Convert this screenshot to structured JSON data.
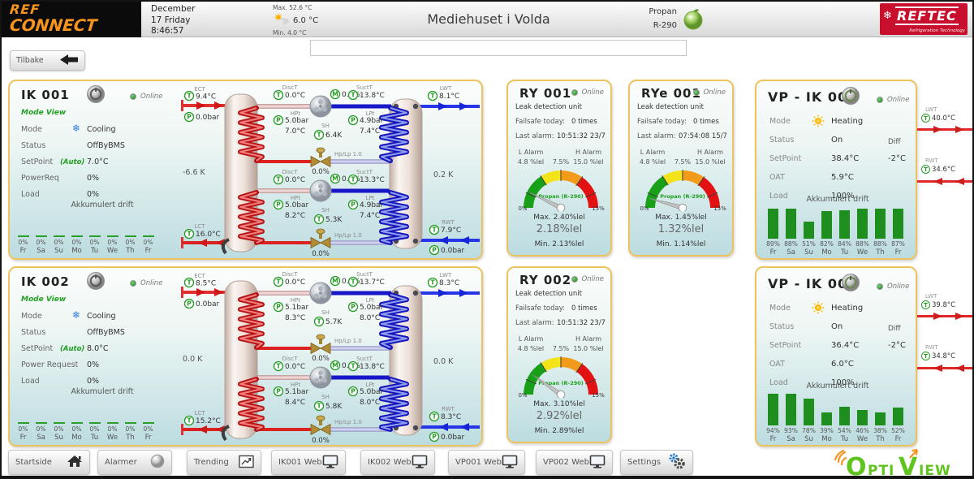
{
  "icons": {
    "t": "T",
    "p": "P",
    "m": "M"
  },
  "header": {
    "logo": {
      "line1": "REF",
      "line2": "CONNECT"
    },
    "date": {
      "month": "December",
      "day": "17 Friday",
      "time": "8:46:57"
    },
    "weather": {
      "max": "Max. 52.6 °C",
      "now": "6.0 °C",
      "min": "Min. 4.0 °C"
    },
    "title": "Mediehuset i Volda",
    "refrigerant": {
      "name": "Propan",
      "code": "R-290"
    },
    "brand": {
      "name": "REFTEC",
      "sub": "Refrigeration Technology"
    }
  },
  "back": {
    "label": "Tilbake"
  },
  "search": {
    "value": ""
  },
  "ik001": {
    "title": "IK 001",
    "online": "Online",
    "mode_view": "Mode View",
    "labels": {
      "mode": "Mode",
      "status": "Status",
      "setpoint": "SetPoint",
      "auto": "(Auto)",
      "power": "PowerReq",
      "load": "Load",
      "akk": "Akkumulert drift"
    },
    "values": {
      "mode": "Cooling",
      "status": "OffByBMS",
      "setpoint": "7.0°C",
      "power": "0%",
      "load": "0%"
    },
    "days": {
      "labels": [
        "Fr",
        "Sa",
        "Su",
        "Mo",
        "Tu",
        "We",
        "Th",
        "Fr"
      ],
      "values": [
        0,
        0,
        0,
        0,
        0,
        0,
        0,
        0
      ]
    },
    "d": {
      "ect": "ECT",
      "ect_t": "9.4°C",
      "ect_p": "0.0bar",
      "lct": "LCT",
      "lct_t": "16.0°C",
      "k_left": "-6.6 K",
      "k_right": "0.2 K",
      "lwt": "LWT",
      "lwt_t": "8.1°C",
      "rwt": "RWT",
      "rwt_t": "7.9°C",
      "rwt_p": "0.0bar",
      "c1": {
        "disct_l": "DiscT",
        "disct": "0.0°C",
        "hpt_l": "HPt",
        "hpt_p": "5.0bar",
        "hpt_t": "7.0°C",
        "m": "0.0%",
        "sh_l": "SH",
        "sh": "6.4K",
        "suctt_l": "SuctT",
        "suctt": "13.8°C",
        "lpt_l": "LPt",
        "lpt_p": "4.9bar",
        "lpt_t": "7.4°C",
        "hplp": "Hp/Lp 1.0",
        "valve": "0.0%"
      },
      "c2": {
        "disct_l": "DiscT",
        "disct": "0.0°C",
        "hpt_l": "HPt",
        "hpt_p": "5.0bar",
        "hpt_t": "8.2°C",
        "m": "0.0%",
        "sh_l": "SH",
        "sh": "5.3K",
        "suctt_l": "SuctT",
        "suctt": "13.3°C",
        "lpt_l": "LPt",
        "lpt_p": "4.9bar",
        "lpt_t": "7.4°C",
        "hplp": "Hp/Lp 1.0",
        "valve": "0.0%"
      }
    }
  },
  "ik002": {
    "title": "IK 002",
    "online": "Online",
    "mode_view": "Mode View",
    "labels": {
      "mode": "Mode",
      "status": "Status",
      "setpoint": "SetPoint",
      "auto": "(Auto)",
      "power": "Power Request",
      "load": "Load",
      "akk": "Akkumulert drift"
    },
    "values": {
      "mode": "Cooling",
      "status": "OffByBMS",
      "setpoint": "8.0°C",
      "power": "0%",
      "load": "0%"
    },
    "days": {
      "labels": [
        "Fr",
        "Sa",
        "Su",
        "Mo",
        "Tu",
        "We",
        "Th",
        "Fr"
      ],
      "values": [
        0,
        0,
        0,
        0,
        0,
        0,
        0,
        0
      ]
    },
    "d": {
      "ect": "ECT",
      "ect_t": "8.5°C",
      "ect_p": "0.0bar",
      "lct": "LCT",
      "lct_t": "15.2°C",
      "k_left": "0.0 K",
      "k_right": "0.0 K",
      "lwt": "LWT",
      "lwt_t": "8.3°C",
      "rwt": "RWT",
      "rwt_t": "8.3°C",
      "rwt_p": "0.0bar",
      "c1": {
        "disct_l": "DiscT",
        "disct": "0.0°C",
        "hpt_l": "HPt",
        "hpt_p": "5.1bar",
        "hpt_t": "8.3°C",
        "m": "0.0%",
        "sh_l": "SH",
        "sh": "5.7K",
        "suctt_l": "SuctT",
        "suctt": "13.7°C",
        "lpt_l": "LPt",
        "lpt_p": "5.0bar",
        "lpt_t": "8.0°C",
        "hplp": "Hp/Lp 1.0",
        "valve": "0.0%"
      },
      "c2": {
        "disct_l": "DiscT",
        "disct": "0.0°C",
        "hpt_l": "HPt",
        "hpt_p": "5.1bar",
        "hpt_t": "8.4°C",
        "m": "0.0%",
        "sh_l": "SH",
        "sh": "5.8K",
        "suctt_l": "SuctT",
        "suctt": "13.8°C",
        "lpt_l": "LPt",
        "lpt_p": "5.0bar",
        "lpt_t": "8.0°C",
        "hplp": "Hp/Lp 1.0",
        "valve": "0.0%"
      }
    }
  },
  "ry001": {
    "title": "RY 001",
    "online": "Online",
    "subtitle": "Leak detection unit",
    "failsafe_label": "Failsafe today:",
    "failsafe_value": "0 times",
    "last_alarm_label": "Last alarm:",
    "last_alarm_value": "10:51:32  23/7",
    "l_alarm_label": "L Alarm",
    "l_alarm_value": "4.8 %lel",
    "mid_threshold": "7.5%",
    "h_alarm_label": "H Alarm",
    "h_alarm_value": "15.0 %lel",
    "gas": "Propan (R-290)",
    "zero": "0%",
    "full": "15%",
    "max": "Max. 2.40%lel",
    "current": "2.18%lel",
    "min": "Min. 2.13%lel",
    "gauge": {
      "value": 2.18,
      "max": 15
    }
  },
  "rye001": {
    "title": "RYe 001",
    "online": "Online",
    "subtitle": "Leak detection unit",
    "failsafe_label": "Failsafe today:",
    "failsafe_value": "0 times",
    "last_alarm_label": "Last alarm:",
    "last_alarm_value": "07:54:08  15/7",
    "l_alarm_label": "L Alarm",
    "l_alarm_value": "4.8 %lel",
    "mid_threshold": "7.5%",
    "h_alarm_label": "H Alarm",
    "h_alarm_value": "15.0 %lel",
    "gas": "Propan (R-290)",
    "zero": "0%",
    "full": "15%",
    "max": "Max. 1.45%lel",
    "current": "1.32%lel",
    "min": "Min. 1.14%lel",
    "gauge": {
      "value": 1.32,
      "max": 15
    }
  },
  "ry002": {
    "title": "RY 002",
    "online": "Online",
    "subtitle": "Leak detection unit",
    "failsafe_label": "Failsafe today:",
    "failsafe_value": "0 times",
    "last_alarm_label": "Last alarm:",
    "last_alarm_value": "10:51:32  23/7",
    "l_alarm_label": "L Alarm",
    "l_alarm_value": "4.8 %lel",
    "mid_threshold": "7.5%",
    "h_alarm_label": "H Alarm",
    "h_alarm_value": "15.0 %lel",
    "gas": "Propan (R-290)",
    "zero": "0%",
    "full": "15%",
    "max": "Max. 3.10%lel",
    "current": "2.92%lel",
    "min": "Min. 2.89%lel",
    "gauge": {
      "value": 2.92,
      "max": 15
    }
  },
  "vp001": {
    "title": "VP - IK 001",
    "online": "Online",
    "labels": {
      "mode": "Mode",
      "status": "Status",
      "setpoint": "SetPoint",
      "oat": "OAT",
      "load": "Load",
      "diff": "Diff",
      "akk": "Akkumulert drift"
    },
    "values": {
      "mode": "Heating",
      "status": "On",
      "setpoint": "38.4°C",
      "diff": "-2°C",
      "oat": "5.9°C",
      "load": "100%"
    },
    "days": {
      "labels": [
        "Fr",
        "Sa",
        "Su",
        "Mo",
        "Tu",
        "We",
        "Th",
        "Fr"
      ],
      "values": [
        89,
        88,
        51,
        82,
        84,
        88,
        88,
        87
      ]
    },
    "side": {
      "lwt": "LWT",
      "lwt_t": "40.0°C",
      "rwt": "RWT",
      "rwt_t": "34.6°C"
    }
  },
  "vp002": {
    "title": "VP - IK 002",
    "online": "Online",
    "labels": {
      "mode": "Mode",
      "status": "Status",
      "setpoint": "SetPoint",
      "oat": "OAT",
      "load": "Load",
      "diff": "Diff",
      "akk": "Akkumulert drift"
    },
    "values": {
      "mode": "Heating",
      "status": "On",
      "setpoint": "36.4°C",
      "diff": "-2°C",
      "oat": "6.0°C",
      "load": "100%"
    },
    "days": {
      "labels": [
        "Fr",
        "Sa",
        "Su",
        "Mo",
        "Tu",
        "We",
        "Th",
        "Fr"
      ],
      "values": [
        94,
        93,
        78,
        39,
        54,
        46,
        38,
        52
      ]
    },
    "side": {
      "lwt": "LWT",
      "lwt_t": "39.8°C",
      "rwt": "RWT",
      "rwt_t": "34.8°C"
    }
  },
  "toolbar": {
    "items": [
      "Startside",
      "Alarmer",
      "Trending",
      "IK001 Web",
      "IK002 Web",
      "VP001 Web",
      "VP002 Web",
      "Settings"
    ]
  },
  "footer": {
    "part1": "O",
    "part2": "pti",
    "part3": "V",
    "part4": "iew"
  }
}
